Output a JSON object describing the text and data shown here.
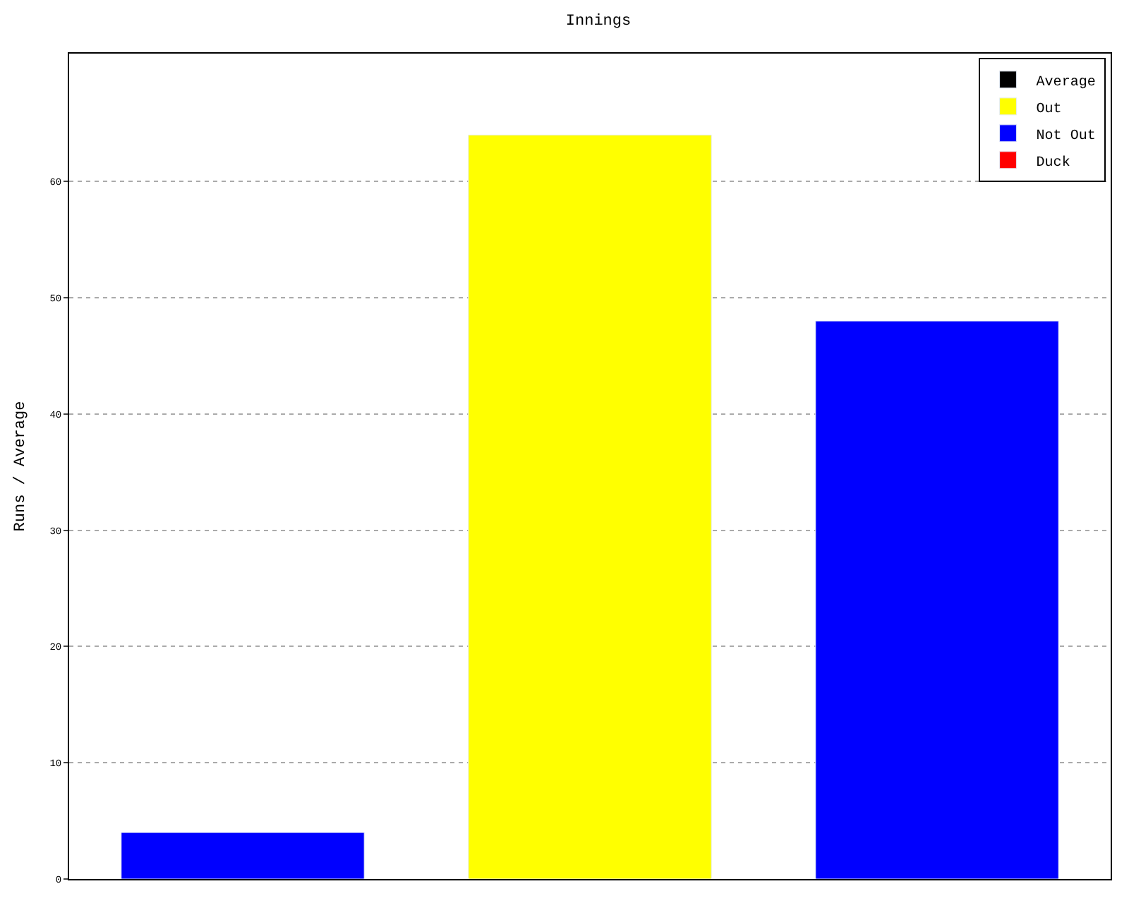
{
  "chart_data": {
    "type": "bar",
    "title": "Innings",
    "ylabel": "Runs / Average",
    "categories": [
      null,
      null,
      null
    ],
    "series": [
      {
        "name": "Average",
        "color": "#000000",
        "values": [
          null,
          null,
          null
        ]
      },
      {
        "name": "Out",
        "color": "#ffff00",
        "values": [
          null,
          64,
          null
        ]
      },
      {
        "name": "Not Out",
        "color": "#0000ff",
        "values": [
          4,
          null,
          48
        ]
      },
      {
        "name": "Duck",
        "color": "#ff0000",
        "values": [
          null,
          null,
          null
        ]
      }
    ],
    "ylim": [
      0,
      71
    ],
    "yticks": [
      0,
      10,
      20,
      30,
      40,
      50,
      60
    ],
    "grid": "y",
    "legend": "top right"
  }
}
